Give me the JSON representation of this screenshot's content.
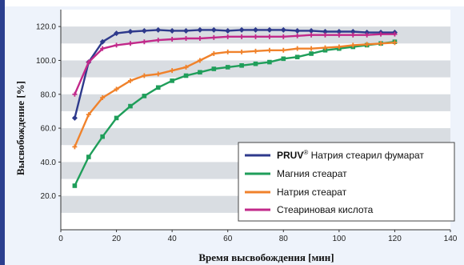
{
  "chart_data": {
    "type": "line",
    "title": "",
    "xlabel": "Время высвобождения [мин]",
    "ylabel": "Высвобождение [%]",
    "xlim": [
      0,
      140
    ],
    "ylim": [
      0,
      130
    ],
    "x_ticks": [
      "0",
      "20",
      "40",
      "60",
      "80",
      "100",
      "120",
      "140"
    ],
    "y_ticks": [
      "20.0",
      "40.0",
      "60.0",
      "80.0",
      "100.0",
      "120.0"
    ],
    "grid": "horizontal bands",
    "legend_position": "bottom-right",
    "series": [
      {
        "name_main": "PRUV",
        "name_sup": "®",
        "name_rest": " Натрия стеарил фумарат",
        "color": "#2e3a8c",
        "marker": "diamond",
        "x": [
          5,
          10,
          15,
          20,
          25,
          30,
          35,
          40,
          45,
          50,
          55,
          60,
          65,
          70,
          75,
          80,
          85,
          90,
          95,
          100,
          105,
          110,
          115,
          120
        ],
        "y": [
          66,
          99,
          111,
          116,
          117,
          117.5,
          118,
          117.5,
          117.5,
          118,
          118,
          117.5,
          118,
          118,
          118,
          118,
          117.5,
          117.5,
          117,
          117,
          117,
          116.5,
          116.5,
          116.5
        ]
      },
      {
        "name": "Магния стеарат",
        "color": "#1f9e5a",
        "marker": "square",
        "x": [
          5,
          10,
          15,
          20,
          25,
          30,
          35,
          40,
          45,
          50,
          55,
          60,
          65,
          70,
          75,
          80,
          85,
          90,
          95,
          100,
          105,
          110,
          115,
          120
        ],
        "y": [
          26,
          43,
          55,
          66,
          73,
          79,
          84,
          88,
          91,
          93,
          95,
          96,
          97,
          98,
          99,
          101,
          102,
          104,
          106,
          107,
          108,
          109,
          110,
          111
        ]
      },
      {
        "name": "Натрия стеарат",
        "color": "#f0822b",
        "marker": "plus",
        "x": [
          5,
          10,
          15,
          20,
          25,
          30,
          35,
          40,
          45,
          50,
          55,
          60,
          65,
          70,
          75,
          80,
          85,
          90,
          95,
          100,
          105,
          110,
          115,
          120
        ],
        "y": [
          49,
          68,
          78,
          83,
          88,
          91,
          92,
          94,
          96,
          100,
          104,
          105,
          105,
          105.5,
          106,
          106,
          107,
          107,
          107.5,
          108,
          109,
          109.5,
          110,
          110.5
        ]
      },
      {
        "name": "Стеариновая кислота",
        "color": "#c2298a",
        "marker": "plus",
        "x": [
          5,
          10,
          15,
          20,
          25,
          30,
          35,
          40,
          45,
          50,
          55,
          60,
          65,
          70,
          75,
          80,
          85,
          90,
          95,
          100,
          105,
          110,
          115,
          120
        ],
        "y": [
          80,
          99,
          107,
          109,
          110,
          111,
          112,
          112.5,
          113,
          113,
          113.5,
          114,
          114,
          114,
          114,
          114,
          114.5,
          115,
          115,
          115,
          115,
          115,
          115.5,
          115.5
        ]
      }
    ]
  }
}
